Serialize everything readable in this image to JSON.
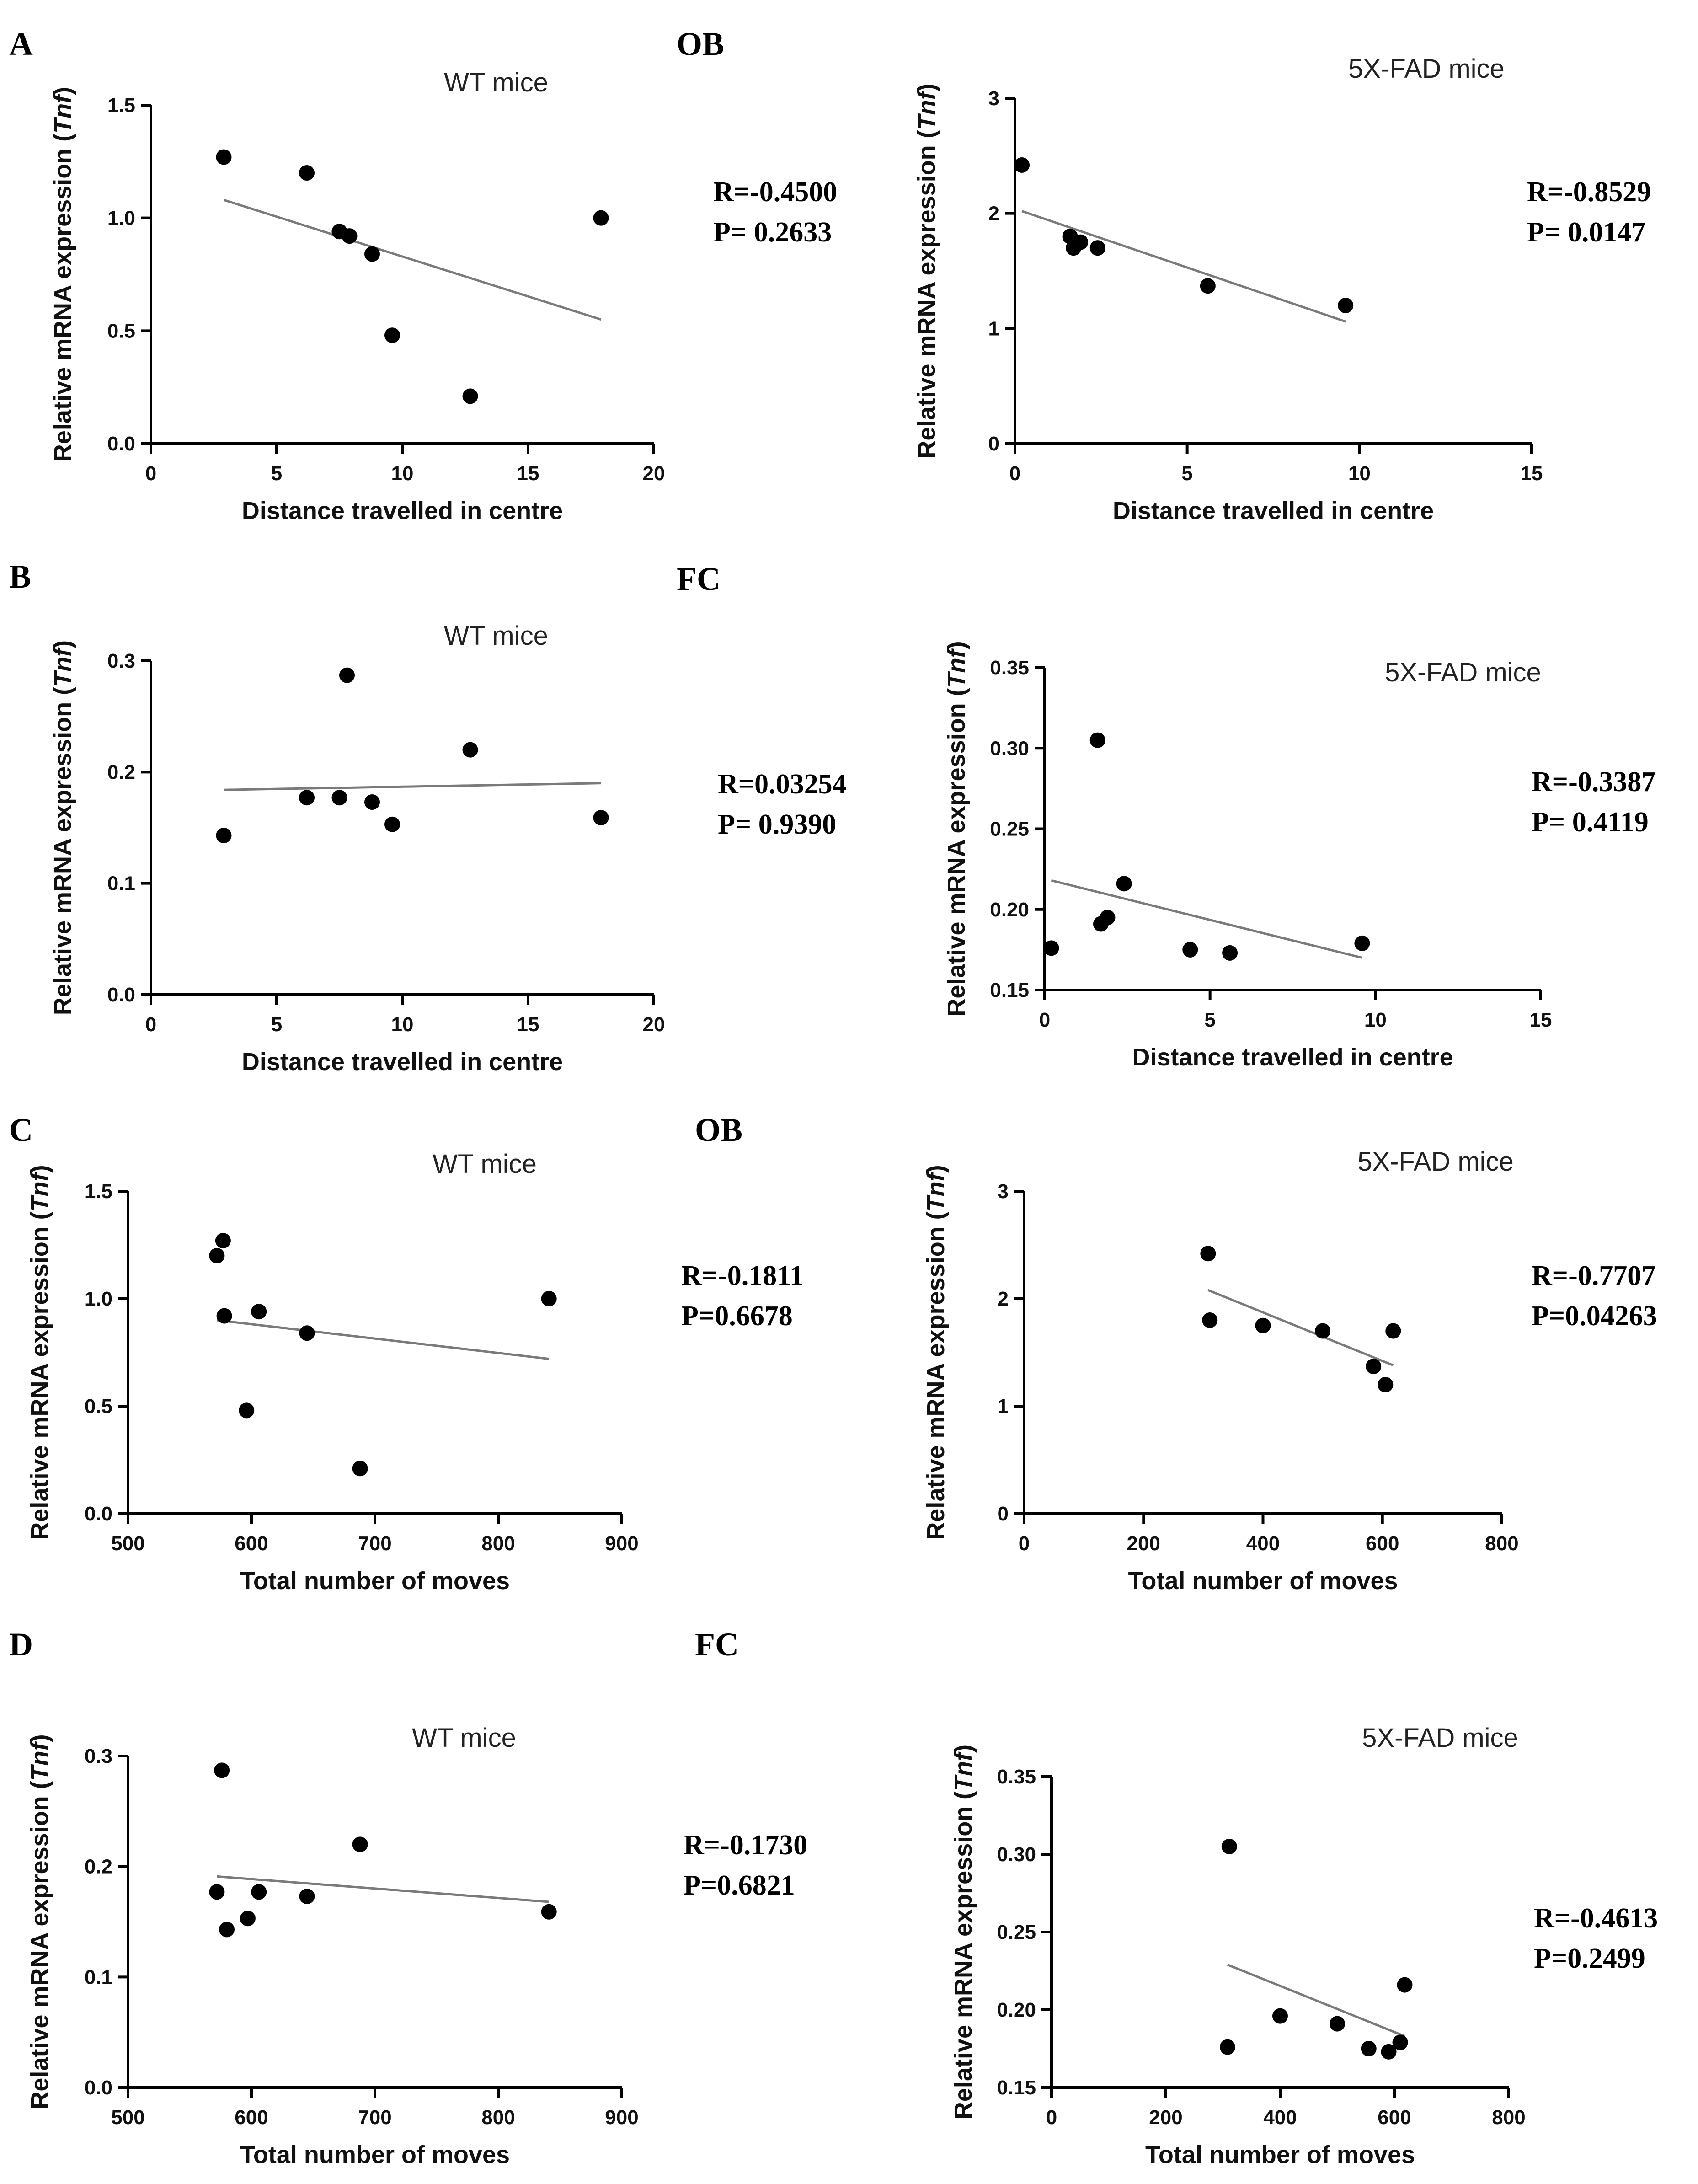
{
  "region_labels": [
    "OB",
    "FC",
    "OB",
    "FC"
  ],
  "chart_data": [
    {
      "id": "A-wt",
      "type": "scatter",
      "panel": "A",
      "title": "WT mice",
      "xlabel": "Distance travelled in centre",
      "ylabel": "Relative mRNA expression (Tnf)",
      "xlim": [
        0,
        20
      ],
      "ylim": [
        0,
        1.5
      ],
      "xticks": [
        "0",
        "5",
        "10",
        "15",
        "20"
      ],
      "yticks": [
        "0.0",
        "0.5",
        "1.0",
        "1.5"
      ],
      "x": [
        2.9,
        6.2,
        7.5,
        7.9,
        8.8,
        9.6,
        12.7,
        17.9
      ],
      "y": [
        1.27,
        1.2,
        0.94,
        0.92,
        0.84,
        0.48,
        0.21,
        1.0
      ],
      "fit": [
        [
          2.9,
          1.08
        ],
        [
          17.9,
          0.55
        ]
      ],
      "stats": [
        "R=-0.4500",
        "P= 0.2633"
      ]
    },
    {
      "id": "A-fad",
      "type": "scatter",
      "panel": "",
      "title": "5X-FAD mice",
      "xlabel": "Distance travelled in centre",
      "ylabel": "Relative mRNA expression (Tnf)",
      "xlim": [
        0,
        15
      ],
      "ylim": [
        0,
        3
      ],
      "xticks": [
        "0",
        "5",
        "10",
        "15"
      ],
      "yticks": [
        "0",
        "1",
        "2",
        "3"
      ],
      "x": [
        0.2,
        1.6,
        1.7,
        1.9,
        2.4,
        5.6,
        9.6
      ],
      "y": [
        2.42,
        1.8,
        1.7,
        1.75,
        1.7,
        1.37,
        1.2
      ],
      "fit": [
        [
          0.2,
          2.02
        ],
        [
          9.6,
          1.06
        ]
      ],
      "stats": [
        "R=-0.8529",
        "P= 0.0147"
      ]
    },
    {
      "id": "B-wt",
      "type": "scatter",
      "panel": "B",
      "title": "WT mice",
      "xlabel": "Distance travelled in centre",
      "ylabel": "Relative mRNA expression (Tnf)",
      "xlim": [
        0,
        20
      ],
      "ylim": [
        0,
        0.3
      ],
      "xticks": [
        "0",
        "5",
        "10",
        "15",
        "20"
      ],
      "yticks": [
        "0.0",
        "0.1",
        "0.2",
        "0.3"
      ],
      "x": [
        2.9,
        6.2,
        7.5,
        7.8,
        8.8,
        9.6,
        12.7,
        17.9
      ],
      "y": [
        0.143,
        0.177,
        0.177,
        0.287,
        0.173,
        0.153,
        0.22,
        0.159
      ],
      "fit": [
        [
          2.9,
          0.184
        ],
        [
          17.9,
          0.19
        ]
      ],
      "stats": [
        "R=0.03254",
        "P= 0.9390"
      ]
    },
    {
      "id": "B-fad",
      "type": "scatter",
      "panel": "",
      "title": "5X-FAD mice",
      "xlabel": "Distance travelled in centre",
      "ylabel": "Relative mRNA expression (Tnf)",
      "xlim": [
        0,
        15
      ],
      "ylim": [
        0.15,
        0.35
      ],
      "xticks": [
        "0",
        "5",
        "10",
        "15"
      ],
      "yticks": [
        "0.15",
        "0.20",
        "0.25",
        "0.30",
        "0.35"
      ],
      "x": [
        0.2,
        1.6,
        1.7,
        1.9,
        2.4,
        4.4,
        5.6,
        9.6
      ],
      "y": [
        0.176,
        0.305,
        0.191,
        0.195,
        0.216,
        0.175,
        0.173,
        0.179
      ],
      "fit": [
        [
          0.2,
          0.218
        ],
        [
          9.6,
          0.17
        ]
      ],
      "stats": [
        "R=-0.3387",
        "P= 0.4119"
      ]
    },
    {
      "id": "C-wt",
      "type": "scatter",
      "panel": "C",
      "title": "WT mice",
      "xlabel": "Total number of moves",
      "ylabel": "Relative mRNA expression (Tnf)",
      "xlim": [
        500,
        900
      ],
      "ylim": [
        0,
        1.5
      ],
      "xticks": [
        "500",
        "600",
        "700",
        "800",
        "900"
      ],
      "yticks": [
        "0.0",
        "0.5",
        "1.0",
        "1.5"
      ],
      "x": [
        572,
        577,
        578,
        596,
        606,
        645,
        688,
        841
      ],
      "y": [
        1.2,
        1.27,
        0.92,
        0.48,
        0.94,
        0.84,
        0.21,
        1.0
      ],
      "fit": [
        [
          572,
          0.9
        ],
        [
          841,
          0.72
        ]
      ],
      "stats": [
        "R=-0.1811",
        "P=0.6678"
      ]
    },
    {
      "id": "C-fad",
      "type": "scatter",
      "panel": "",
      "title": "5X-FAD mice",
      "xlabel": "Total number of moves",
      "ylabel": "Relative mRNA expression (Tnf)",
      "xlim": [
        0,
        800
      ],
      "ylim": [
        0,
        3
      ],
      "xticks": [
        "0",
        "200",
        "400",
        "600",
        "800"
      ],
      "yticks": [
        "0",
        "1",
        "2",
        "3"
      ],
      "x": [
        308,
        311,
        400,
        500,
        585,
        605,
        618
      ],
      "y": [
        2.42,
        1.8,
        1.75,
        1.7,
        1.37,
        1.2,
        1.7
      ],
      "fit": [
        [
          308,
          2.08
        ],
        [
          618,
          1.38
        ]
      ],
      "stats": [
        "R=-0.7707",
        "P=0.04263"
      ]
    },
    {
      "id": "D-wt",
      "type": "scatter",
      "panel": "D",
      "title": "WT mice",
      "xlabel": "Total number of moves",
      "ylabel": "Relative mRNA expression (Tnf)",
      "xlim": [
        500,
        900
      ],
      "ylim": [
        0,
        0.3
      ],
      "xticks": [
        "500",
        "600",
        "700",
        "800",
        "900"
      ],
      "yticks": [
        "0.0",
        "0.1",
        "0.2",
        "0.3"
      ],
      "x": [
        572,
        576,
        580,
        597,
        606,
        645,
        688,
        841
      ],
      "y": [
        0.177,
        0.287,
        0.143,
        0.153,
        0.177,
        0.173,
        0.22,
        0.159
      ],
      "fit": [
        [
          572,
          0.191
        ],
        [
          841,
          0.168
        ]
      ],
      "stats": [
        "R=-0.1730",
        "P=0.6821"
      ]
    },
    {
      "id": "D-fad",
      "type": "scatter",
      "panel": "",
      "title": "5X-FAD mice",
      "xlabel": "Total number of moves",
      "ylabel": "Relative mRNA expression (Tnf)",
      "xlim": [
        0,
        800
      ],
      "ylim": [
        0.15,
        0.35
      ],
      "xticks": [
        "0",
        "200",
        "400",
        "600",
        "800"
      ],
      "yticks": [
        "0.15",
        "0.20",
        "0.25",
        "0.30",
        "0.35"
      ],
      "x": [
        308,
        311,
        400,
        500,
        555,
        590,
        610,
        618
      ],
      "y": [
        0.176,
        0.305,
        0.196,
        0.191,
        0.175,
        0.173,
        0.179,
        0.216
      ],
      "fit": [
        [
          308,
          0.229
        ],
        [
          618,
          0.183
        ]
      ],
      "stats": [
        "R=-0.4613",
        "P=0.2499"
      ]
    }
  ]
}
